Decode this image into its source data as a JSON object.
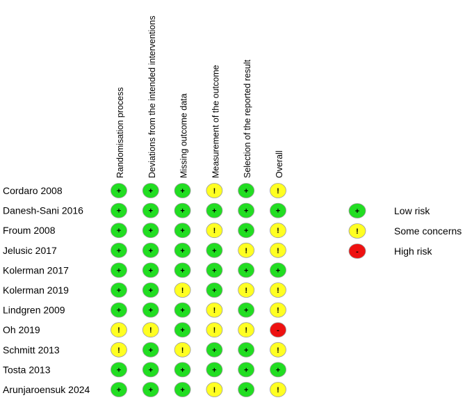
{
  "columns": [
    "Randomisation process",
    "Deviations from the intended interventions",
    "Missing outcome data",
    "Measurement of the outcome",
    "Selection of the reported result",
    "Overall"
  ],
  "studies": [
    {
      "name": "Cordaro 2008",
      "ratings": [
        "low",
        "low",
        "low",
        "some",
        "low",
        "some"
      ]
    },
    {
      "name": "Danesh-Sani 2016",
      "ratings": [
        "low",
        "low",
        "low",
        "low",
        "low",
        "low"
      ]
    },
    {
      "name": "Froum 2008",
      "ratings": [
        "low",
        "low",
        "low",
        "some",
        "low",
        "some"
      ]
    },
    {
      "name": "Jelusic 2017",
      "ratings": [
        "low",
        "low",
        "low",
        "low",
        "some",
        "some"
      ]
    },
    {
      "name": "Kolerman 2017",
      "ratings": [
        "low",
        "low",
        "low",
        "low",
        "low",
        "low"
      ]
    },
    {
      "name": "Kolerman 2019",
      "ratings": [
        "low",
        "low",
        "some",
        "low",
        "some",
        "some"
      ]
    },
    {
      "name": "Lindgren 2009",
      "ratings": [
        "low",
        "low",
        "low",
        "some",
        "low",
        "some"
      ]
    },
    {
      "name": "Oh 2019",
      "ratings": [
        "some",
        "some",
        "low",
        "some",
        "some",
        "high"
      ]
    },
    {
      "name": "Schmitt 2013",
      "ratings": [
        "some",
        "low",
        "some",
        "low",
        "low",
        "some"
      ]
    },
    {
      "name": "Tosta 2013",
      "ratings": [
        "low",
        "low",
        "low",
        "low",
        "low",
        "low"
      ]
    },
    {
      "name": "Arunjaroensuk  2024",
      "ratings": [
        "low",
        "low",
        "low",
        "some",
        "low",
        "some"
      ]
    }
  ],
  "levels": {
    "low": {
      "symbol": "+",
      "color": "#22dd22",
      "label": "Low risk"
    },
    "some": {
      "symbol": "!",
      "color": "#ffff22",
      "label": "Some concerns"
    },
    "high": {
      "symbol": "-",
      "color": "#ee1111",
      "label": "High risk"
    }
  },
  "legend": [
    "low",
    "some",
    "high"
  ]
}
